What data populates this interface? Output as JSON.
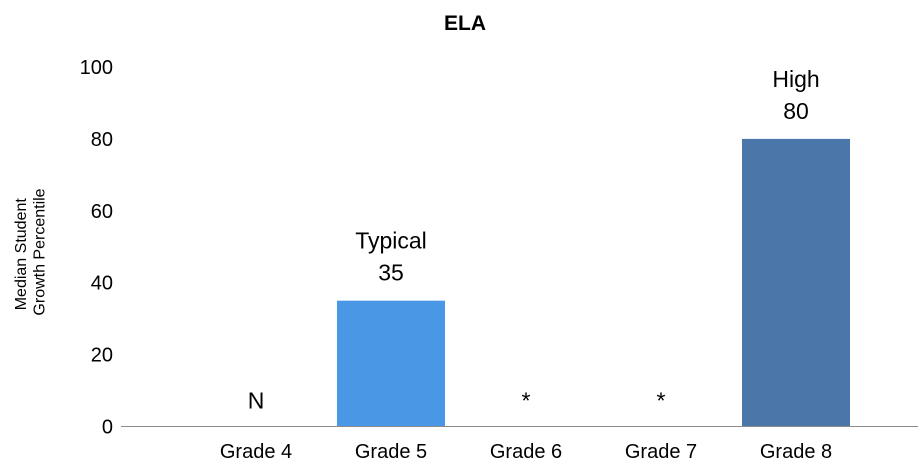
{
  "chart_data": {
    "type": "bar",
    "title": "ELA",
    "xlabel": "",
    "ylabel_lines": [
      "Median Student",
      "Growth Percentile"
    ],
    "ylim": [
      0,
      100
    ],
    "yticks": [
      "0",
      "20",
      "40",
      "60",
      "80",
      "100"
    ],
    "grid": false,
    "legend": "none",
    "categories": [
      "Grade 4",
      "Grade 5",
      "Grade 6",
      "Grade 7",
      "Grade 8"
    ],
    "values": [
      null,
      35,
      null,
      null,
      80
    ],
    "value_labels": [
      [
        "N"
      ],
      [
        "Typical",
        "35"
      ],
      [
        "*"
      ],
      [
        "*"
      ],
      [
        "High",
        "80"
      ]
    ],
    "bar_colors": [
      null,
      "#4a97e6",
      null,
      null,
      "#4a76aa"
    ]
  }
}
